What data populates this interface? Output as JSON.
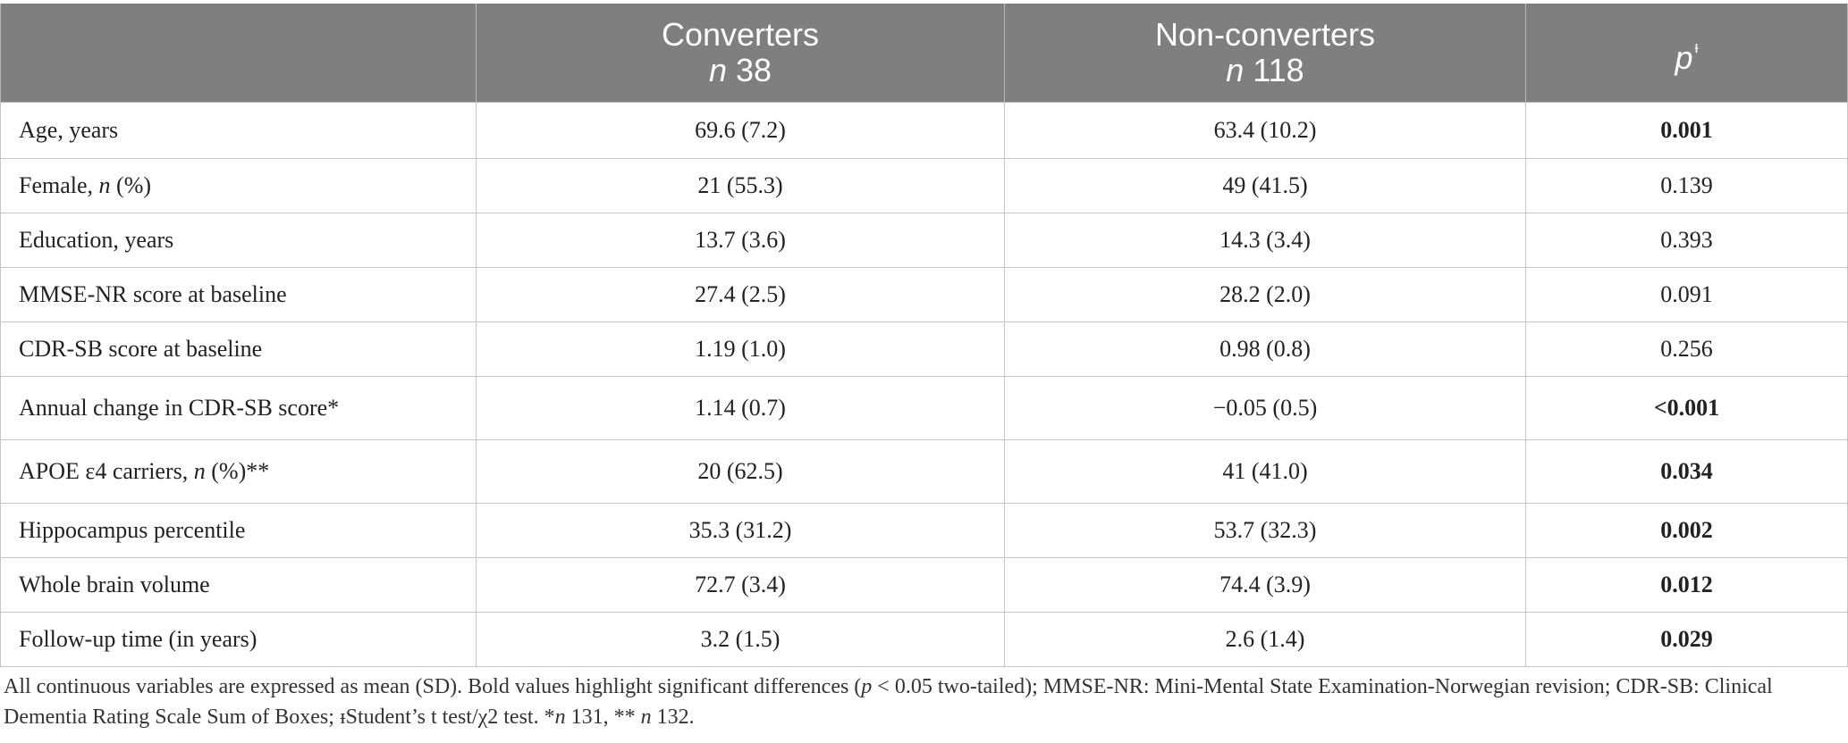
{
  "table": {
    "headers": {
      "col0": "",
      "converters_title": "Converters",
      "converters_n_symbol": "n",
      "converters_n_value": "38",
      "nonconverters_title": "Non-converters",
      "nonconverters_n_symbol": "n",
      "nonconverters_n_value": "118",
      "p_label": "p",
      "p_mark": "ᵻ"
    },
    "rows": [
      {
        "label": "Age, years",
        "converters": "69.6 (7.2)",
        "nonconverters": "63.4 (10.2)",
        "p": "0.001",
        "significant": true
      },
      {
        "label_pre": "Female, ",
        "label_italic": "n",
        "label_post": " (%)",
        "converters": "21 (55.3)",
        "nonconverters": "49 (41.5)",
        "p": "0.139",
        "significant": false
      },
      {
        "label": "Education, years",
        "converters": "13.7 (3.6)",
        "nonconverters": "14.3 (3.4)",
        "p": "0.393",
        "significant": false
      },
      {
        "label": "MMSE-NR score at baseline",
        "converters": "27.4 (2.5)",
        "nonconverters": "28.2 (2.0)",
        "p": "0.091",
        "significant": false
      },
      {
        "label": "CDR-SB score at baseline",
        "converters": "1.19 (1.0)",
        "nonconverters": "0.98 (0.8)",
        "p": "0.256",
        "significant": false
      },
      {
        "label": "Annual change in CDR-SB score*",
        "converters": "1.14 (0.7)",
        "nonconverters": "−0.05 (0.5)",
        "p": "<0.001",
        "significant": true
      },
      {
        "label_pre": "APOE ε4 carriers, ",
        "label_italic": "n",
        "label_post": " (%)**",
        "converters": "20 (62.5)",
        "nonconverters": "41 (41.0)",
        "p": "0.034",
        "significant": true
      },
      {
        "label": "Hippocampus percentile",
        "converters": "35.3 (31.2)",
        "nonconverters": "53.7 (32.3)",
        "p": "0.002",
        "significant": true
      },
      {
        "label": "Whole brain volume",
        "converters": "72.7 (3.4)",
        "nonconverters": "74.4 (3.9)",
        "p": "0.012",
        "significant": true
      },
      {
        "label": "Follow-up time (in years)",
        "converters": "3.2 (1.5)",
        "nonconverters": "2.6 (1.4)",
        "p": "0.029",
        "significant": true
      }
    ]
  },
  "footnote": {
    "part1": "All continuous variables are expressed as mean (SD). Bold values highlight significant differences (",
    "p_symbol": "p",
    "part2": " < 0.05 two-tailed); MMSE-NR: Mini-Mental State Examination-Norwegian revision; CDR-SB: Clinical Dementia Rating Scale Sum of Boxes; ᵻStudent’s t test/χ2 test. *",
    "n1_symbol": "n",
    "part3": " 131, ** ",
    "n2_symbol": "n",
    "part4": " 132."
  },
  "colors": {
    "header_bg": "#7f7f7e",
    "header_text": "#ffffff",
    "grid_lines": "#c4c4c4"
  }
}
